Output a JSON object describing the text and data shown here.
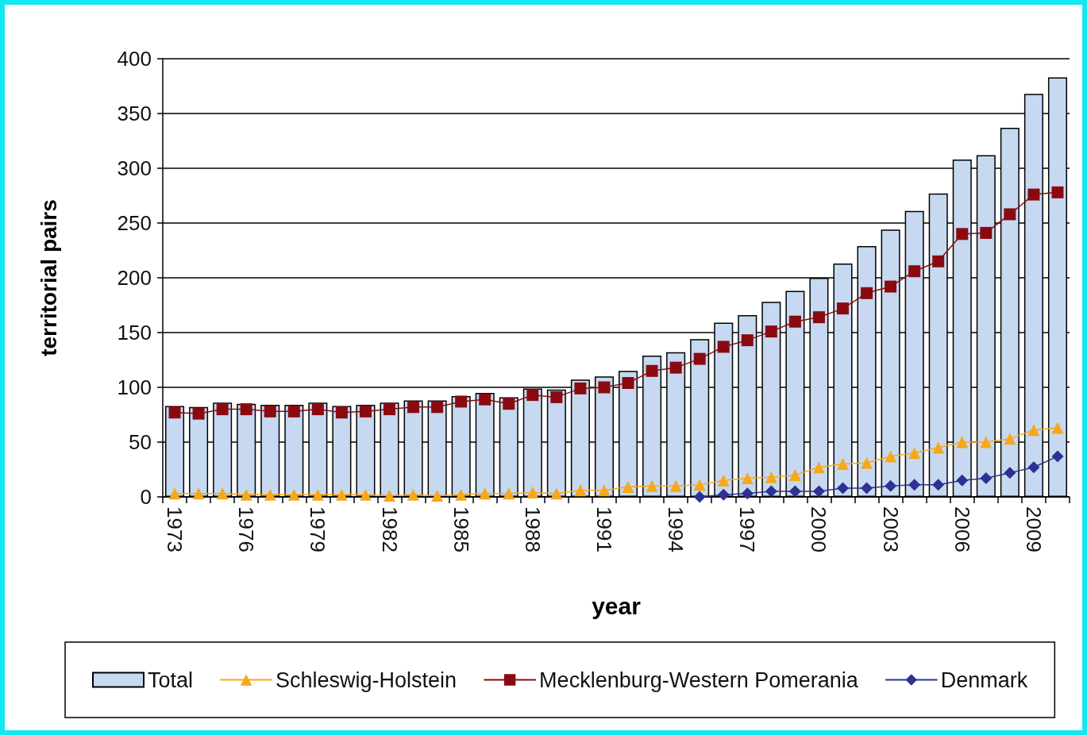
{
  "chart_data": {
    "type": "bar",
    "xlabel": "year",
    "ylabel": "territorial pairs",
    "categories": [
      "1973",
      null,
      null,
      "1976",
      null,
      null,
      "1979",
      null,
      null,
      "1982",
      null,
      null,
      "1985",
      null,
      null,
      "1988",
      null,
      null,
      "1991",
      null,
      null,
      "1994",
      null,
      null,
      "1997",
      null,
      null,
      "2000",
      null,
      null,
      "2003",
      null,
      null,
      "2006",
      null,
      null,
      "2009",
      null
    ],
    "ylim": [
      0,
      400
    ],
    "yticks": [
      0,
      50,
      100,
      150,
      200,
      250,
      300,
      350,
      400
    ],
    "grid": "y",
    "legend": "bottom",
    "series": [
      {
        "name": "Total",
        "color": "#c6d9f1",
        "values": [
          83,
          82,
          86,
          85,
          84,
          84,
          86,
          83,
          84,
          86,
          88,
          88,
          92,
          95,
          91,
          99,
          98,
          107,
          110,
          115,
          129,
          132,
          144,
          159,
          166,
          178,
          188,
          200,
          213,
          229,
          244,
          261,
          277,
          308,
          312,
          337,
          368,
          383
        ]
      },
      {
        "name": "Schleswig-Holstein",
        "type": "line",
        "color": "#f5a81c",
        "marker": "triangle",
        "values": [
          3,
          3,
          3,
          2,
          2,
          2,
          2,
          2,
          2,
          1,
          2,
          1,
          2,
          3,
          3,
          4,
          3,
          6,
          6,
          9,
          10,
          10,
          11,
          15,
          17,
          18,
          20,
          27,
          30,
          31,
          37,
          40,
          45,
          50,
          50,
          53,
          61,
          63
        ]
      },
      {
        "name": "Mecklenburg-Western Pomerania",
        "type": "line",
        "color": "#8b0a0f",
        "marker": "square",
        "values": [
          77,
          76,
          80,
          80,
          78,
          78,
          80,
          77,
          78,
          80,
          82,
          82,
          87,
          89,
          85,
          93,
          91,
          99,
          100,
          104,
          115,
          118,
          126,
          137,
          143,
          151,
          160,
          164,
          172,
          186,
          192,
          206,
          215,
          240,
          241,
          258,
          276,
          278
        ]
      },
      {
        "name": "Denmark",
        "type": "line",
        "color": "#2e3192",
        "marker": "diamond",
        "values": [
          null,
          null,
          null,
          null,
          null,
          null,
          null,
          null,
          null,
          null,
          null,
          null,
          null,
          null,
          null,
          null,
          null,
          null,
          null,
          null,
          null,
          null,
          0,
          2,
          3,
          5,
          5,
          5,
          8,
          8,
          10,
          11,
          11,
          15,
          17,
          22,
          27,
          37
        ]
      }
    ]
  }
}
